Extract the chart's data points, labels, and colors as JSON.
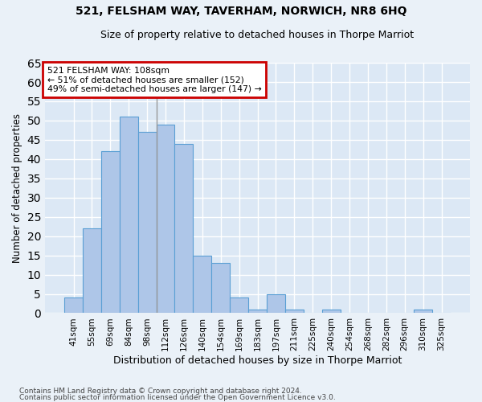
{
  "title": "521, FELSHAM WAY, TAVERHAM, NORWICH, NR8 6HQ",
  "subtitle": "Size of property relative to detached houses in Thorpe Marriot",
  "xlabel": "Distribution of detached houses by size in Thorpe Marriot",
  "ylabel": "Number of detached properties",
  "categories": [
    "41sqm",
    "55sqm",
    "69sqm",
    "84sqm",
    "98sqm",
    "112sqm",
    "126sqm",
    "140sqm",
    "154sqm",
    "169sqm",
    "183sqm",
    "197sqm",
    "211sqm",
    "225sqm",
    "240sqm",
    "254sqm",
    "268sqm",
    "282sqm",
    "296sqm",
    "310sqm",
    "325sqm"
  ],
  "values": [
    4,
    22,
    42,
    51,
    47,
    49,
    44,
    15,
    13,
    4,
    1,
    5,
    1,
    0,
    1,
    0,
    0,
    0,
    0,
    1,
    0
  ],
  "bar_color": "#aec6e8",
  "bar_edge_color": "#5a9fd4",
  "annotation_line1": "521 FELSHAM WAY: 108sqm",
  "annotation_line2": "← 51% of detached houses are smaller (152)",
  "annotation_line3": "49% of semi-detached houses are larger (147) →",
  "annotation_box_color": "#ffffff",
  "annotation_box_edge": "#cc0000",
  "property_line_x": 4.5,
  "ylim": [
    0,
    65
  ],
  "yticks": [
    0,
    5,
    10,
    15,
    20,
    25,
    30,
    35,
    40,
    45,
    50,
    55,
    60,
    65
  ],
  "background_color": "#dce8f5",
  "plot_bg_color": "#dce8f5",
  "fig_bg_color": "#eaf1f8",
  "grid_color": "#ffffff",
  "footer1": "Contains HM Land Registry data © Crown copyright and database right 2024.",
  "footer2": "Contains public sector information licensed under the Open Government Licence v3.0."
}
